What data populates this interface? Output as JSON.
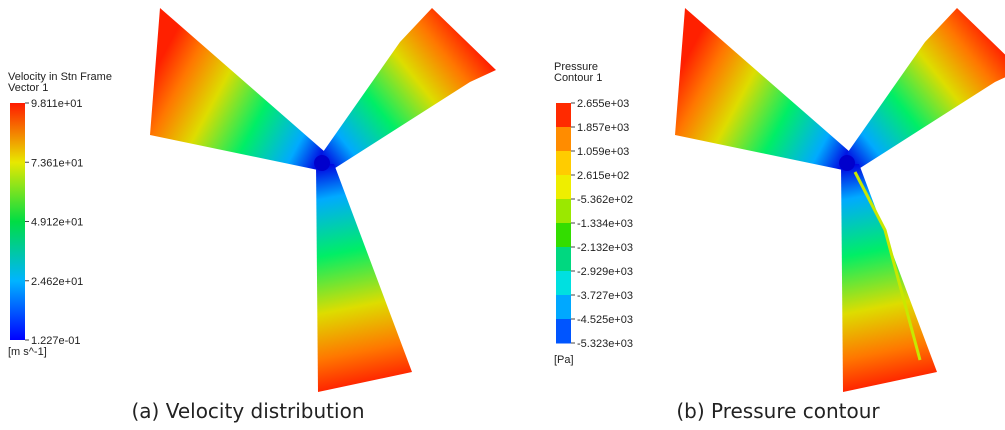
{
  "panels": [
    {
      "legend_title": [
        "Velocity in Stn Frame",
        "Vector 1"
      ],
      "labels": [
        "9.811e+01",
        "7.361e+01",
        "4.912e+01",
        "2.462e+01",
        "1.227e-01"
      ],
      "unit": "[m s^-1]",
      "caption": "(a) Velocity distribution"
    },
    {
      "legend_title": [
        "Pressure",
        "Contour 1"
      ],
      "labels": [
        "2.655e+03",
        "1.857e+03",
        "1.059e+03",
        "2.615e+02",
        "-5.362e+02",
        "-1.334e+03",
        "-2.132e+03",
        "-2.929e+03",
        "-3.727e+03",
        "-4.525e+03",
        "-5.323e+03"
      ],
      "unit": "[Pa]",
      "caption": "(b) Pressure contour"
    }
  ]
}
